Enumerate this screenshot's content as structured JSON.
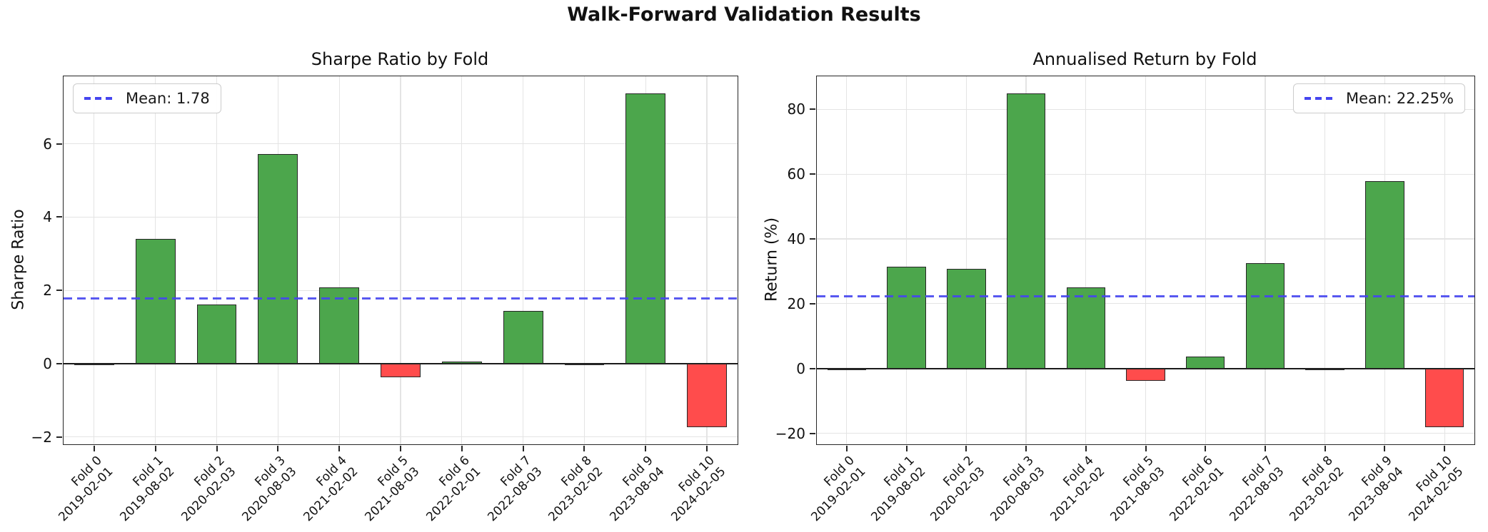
{
  "figure": {
    "title": "Walk-Forward Validation Results"
  },
  "chart_data": [
    {
      "type": "bar",
      "title": "Sharpe Ratio by Fold",
      "ylabel": "Sharpe Ratio",
      "categories": [
        {
          "label": "Fold 0",
          "date": "2019-02-01"
        },
        {
          "label": "Fold 1",
          "date": "2019-08-02"
        },
        {
          "label": "Fold 2",
          "date": "2020-02-03"
        },
        {
          "label": "Fold 3",
          "date": "2020-08-03"
        },
        {
          "label": "Fold 4",
          "date": "2021-02-02"
        },
        {
          "label": "Fold 5",
          "date": "2021-08-03"
        },
        {
          "label": "Fold 6",
          "date": "2022-02-01"
        },
        {
          "label": "Fold 7",
          "date": "2022-08-03"
        },
        {
          "label": "Fold 8",
          "date": "2023-02-02"
        },
        {
          "label": "Fold 9",
          "date": "2023-08-04"
        },
        {
          "label": "Fold 10",
          "date": "2024-02-05"
        }
      ],
      "values": [
        0.0,
        3.4,
        1.62,
        5.72,
        2.08,
        -0.38,
        0.06,
        1.44,
        0.0,
        7.38,
        -1.74
      ],
      "mean": 1.78,
      "mean_label": "Mean: 1.78",
      "yticks": [
        -2,
        0,
        2,
        4,
        6
      ],
      "ylim": [
        -2.2,
        7.84
      ],
      "grid": true,
      "legend_position": "top-left",
      "bar_color_positive": "#4ca64c",
      "bar_color_negative": "#ff4c4c",
      "bar_edge_color": "#262626",
      "mean_line_color": "#4545ef"
    },
    {
      "type": "bar",
      "title": "Annualised Return by Fold",
      "ylabel": "Return (%)",
      "categories": [
        {
          "label": "Fold 0",
          "date": "2019-02-01"
        },
        {
          "label": "Fold 1",
          "date": "2019-08-02"
        },
        {
          "label": "Fold 2",
          "date": "2020-02-03"
        },
        {
          "label": "Fold 3",
          "date": "2020-08-03"
        },
        {
          "label": "Fold 4",
          "date": "2021-02-02"
        },
        {
          "label": "Fold 5",
          "date": "2021-08-03"
        },
        {
          "label": "Fold 6",
          "date": "2022-02-01"
        },
        {
          "label": "Fold 7",
          "date": "2022-08-03"
        },
        {
          "label": "Fold 8",
          "date": "2023-02-02"
        },
        {
          "label": "Fold 9",
          "date": "2023-08-04"
        },
        {
          "label": "Fold 10",
          "date": "2024-02-05"
        }
      ],
      "values": [
        0.0,
        31.5,
        30.8,
        85.0,
        25.0,
        -3.7,
        3.7,
        32.6,
        0.0,
        57.8,
        -18.2
      ],
      "mean": 22.25,
      "mean_label": "Mean: 22.25%",
      "yticks": [
        -20,
        0,
        20,
        40,
        60,
        80
      ],
      "ylim": [
        -23.4,
        90.2
      ],
      "grid": true,
      "legend_position": "top-right",
      "bar_color_positive": "#4ca64c",
      "bar_color_negative": "#ff4c4c",
      "bar_edge_color": "#262626",
      "mean_line_color": "#4545ef"
    }
  ]
}
